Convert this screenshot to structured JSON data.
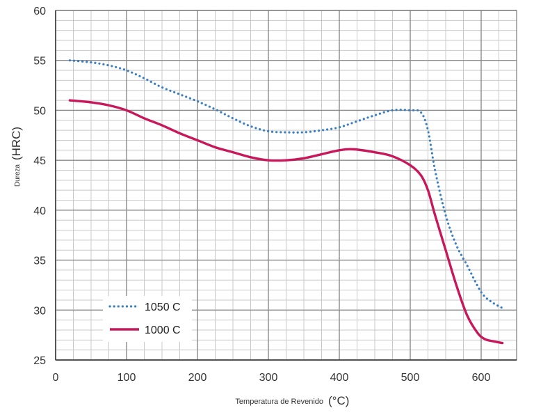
{
  "chart_data": {
    "type": "line",
    "title": "",
    "xlabel": {
      "text": "Temperatura de Revenido",
      "unit": "(°C)"
    },
    "ylabel": {
      "text": "Dureza",
      "unit": "(HRC)"
    },
    "xlim": [
      0,
      650
    ],
    "ylim": [
      25,
      60
    ],
    "x_ticks": [
      0,
      100,
      200,
      300,
      400,
      500,
      600
    ],
    "y_ticks": [
      25,
      30,
      35,
      40,
      45,
      50,
      55,
      60
    ],
    "x_minor_step": 25,
    "y_minor_step": 1,
    "grid": true,
    "legend_position": "bottom-left",
    "series": [
      {
        "name": "1050 C",
        "color": "#3a7fc1",
        "style": "dotted",
        "x": [
          20,
          50,
          75,
          100,
          125,
          150,
          175,
          200,
          225,
          250,
          275,
          300,
          325,
          350,
          375,
          400,
          425,
          450,
          475,
          500,
          515,
          525,
          535,
          550,
          565,
          580,
          600,
          615,
          630
        ],
        "y": [
          55,
          54.8,
          54.5,
          54,
          53.2,
          52.3,
          51.6,
          50.9,
          50.1,
          49.2,
          48.4,
          47.9,
          47.8,
          47.8,
          48.0,
          48.3,
          48.9,
          49.5,
          50.0,
          50.0,
          49.8,
          48.0,
          44.0,
          39.5,
          36.5,
          34.5,
          31.8,
          30.8,
          30.2
        ]
      },
      {
        "name": "1000 C",
        "color": "#c8175a",
        "style": "solid",
        "x": [
          20,
          50,
          75,
          100,
          125,
          150,
          175,
          200,
          225,
          250,
          275,
          300,
          325,
          350,
          375,
          400,
          420,
          450,
          475,
          500,
          515,
          525,
          535,
          550,
          565,
          580,
          595,
          605,
          615,
          630
        ],
        "y": [
          51,
          50.8,
          50.5,
          50,
          49.2,
          48.5,
          47.7,
          47.0,
          46.3,
          45.8,
          45.3,
          45.0,
          45.0,
          45.2,
          45.6,
          46.0,
          46.1,
          45.8,
          45.4,
          44.5,
          43.5,
          42.0,
          39.5,
          36.0,
          32.5,
          29.5,
          27.7,
          27.1,
          26.9,
          26.7
        ]
      }
    ]
  }
}
